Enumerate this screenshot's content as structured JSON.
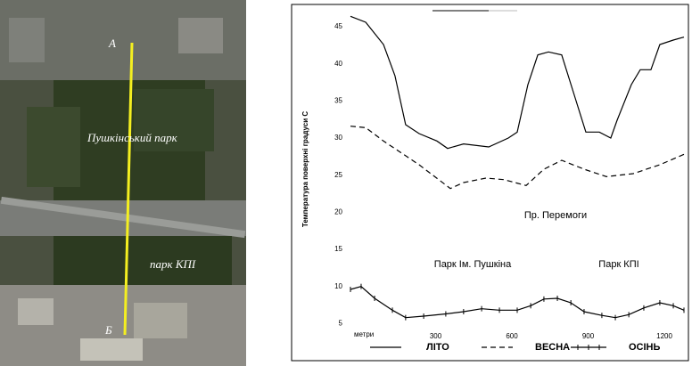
{
  "map": {
    "labels": [
      "А",
      "Б",
      "Пушкінський парк",
      "парк КПІ"
    ]
  },
  "chart_data": {
    "type": "line",
    "y_label": "Температура поверхні градуси  С",
    "x_label": "метри",
    "annotations": [
      "Пр. Перемоги",
      "Парк Ім. Пушкіна",
      "Парк КПІ"
    ],
    "ylim": [
      0,
      48
    ],
    "yticks": [
      5,
      10,
      15,
      20,
      25,
      30,
      35,
      40,
      45
    ],
    "xlim": [
      -35,
      1277
    ],
    "xticks": [
      300,
      600,
      900,
      1200
    ],
    "series": [
      {
        "name": "ЛІТО",
        "style": "solid",
        "color": "#000000",
        "x": [
          -35,
          25,
          95,
          140,
          182,
          235,
          305,
          347,
          410,
          509,
          586,
          621,
          663,
          702,
          744,
          796,
          849,
          891,
          944,
          989,
          1014,
          1070,
          1105,
          1147,
          1182,
          1235,
          1277
        ],
        "values": [
          46.4,
          45.6,
          42.6,
          38.4,
          31.8,
          30.6,
          29.6,
          28.6,
          29.2,
          28.8,
          30.0,
          30.8,
          37.2,
          41.2,
          41.6,
          41.2,
          35.4,
          30.8,
          30.8,
          30.0,
          32.4,
          37.2,
          39.2,
          39.2,
          42.6,
          43.2,
          43.6
        ]
      },
      {
        "name": "ВЕСНА",
        "style": "dashed",
        "color": "#000000",
        "x": [
          -35,
          25,
          95,
          235,
          358,
          410,
          498,
          568,
          656,
          726,
          796,
          884,
          972,
          1077,
          1182,
          1277
        ],
        "values": [
          31.6,
          31.4,
          29.6,
          26.4,
          23.2,
          24.0,
          24.6,
          24.4,
          23.6,
          25.8,
          27.0,
          25.8,
          24.8,
          25.2,
          26.4,
          27.8
        ]
      },
      {
        "name": "ОСІНЬ",
        "style": "cross",
        "color": "#000000",
        "x": [
          -35,
          7,
          60,
          130,
          182,
          253,
          340,
          410,
          481,
          551,
          621,
          674,
          726,
          779,
          832,
          884,
          954,
          1007,
          1060,
          1119,
          1182,
          1235,
          1277
        ],
        "values": [
          9.6,
          10.0,
          8.4,
          6.8,
          5.8,
          6.0,
          6.3,
          6.6,
          7.0,
          6.8,
          6.8,
          7.4,
          8.3,
          8.4,
          7.8,
          6.6,
          6.1,
          5.8,
          6.2,
          7.1,
          7.8,
          7.4,
          6.8
        ]
      }
    ]
  }
}
